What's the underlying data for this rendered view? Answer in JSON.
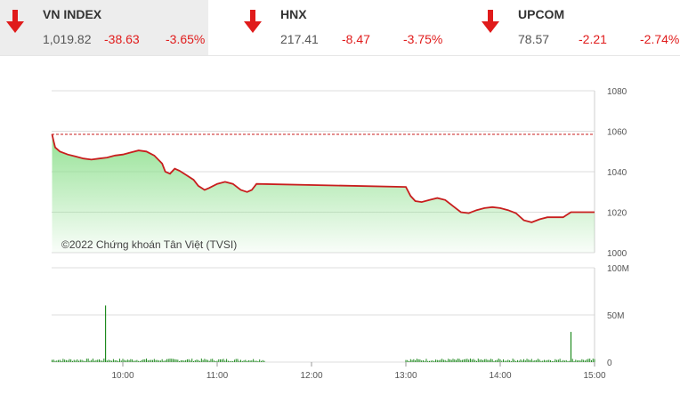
{
  "indices": [
    {
      "name": "VN INDEX",
      "price": "1,019.82",
      "change": "-38.63",
      "percent": "-3.65%",
      "direction_icon": "arrow-down-icon",
      "active": true
    },
    {
      "name": "HNX",
      "price": "217.41",
      "change": "-8.47",
      "percent": "-3.75%",
      "direction_icon": "arrow-down-icon",
      "active": false
    },
    {
      "name": "UPCOM",
      "price": "78.57",
      "change": "-2.21",
      "percent": "-2.74%",
      "direction_icon": "arrow-down-icon",
      "active": false
    }
  ],
  "colors": {
    "down": "#e01b1b",
    "line": "#c81e1e",
    "area": "#7fdc7f",
    "volume": "#1f8a1f",
    "grid": "#dddddd"
  },
  "watermark": "©2022 Chứng khoán Tân Việt (TVSI)",
  "chart_data": {
    "type": "line",
    "reference_value": 1058.45,
    "price_axis": {
      "ylim": [
        1000,
        1080
      ],
      "ticks": [
        "1080",
        "1060",
        "1040",
        "1020",
        "1000"
      ]
    },
    "volume_axis": {
      "ylim": [
        0,
        100
      ],
      "ticks": [
        "100M",
        "50M",
        "0"
      ]
    },
    "time_axis": {
      "ticks": [
        "10:00",
        "11:00",
        "12:00",
        "13:00",
        "14:00",
        "15:00"
      ]
    },
    "series": [
      {
        "values": [
          [
            "09:15",
            1058.5
          ],
          [
            "09:16",
            1055
          ],
          [
            "09:17",
            1052
          ],
          [
            "09:20",
            1050
          ],
          [
            "09:25",
            1048.5
          ],
          [
            "09:30",
            1047.5
          ],
          [
            "09:35",
            1046.5
          ],
          [
            "09:40",
            1046
          ],
          [
            "09:45",
            1046.5
          ],
          [
            "09:50",
            1047
          ],
          [
            "09:55",
            1048
          ],
          [
            "10:00",
            1048.5
          ],
          [
            "10:05",
            1049.5
          ],
          [
            "10:10",
            1050.5
          ],
          [
            "10:15",
            1050
          ],
          [
            "10:20",
            1048
          ],
          [
            "10:25",
            1044
          ],
          [
            "10:27",
            1040
          ],
          [
            "10:30",
            1039
          ],
          [
            "10:33",
            1041.5
          ],
          [
            "10:36",
            1040.5
          ],
          [
            "10:40",
            1038.5
          ],
          [
            "10:45",
            1036
          ],
          [
            "10:48",
            1033
          ],
          [
            "10:52",
            1031
          ],
          [
            "10:55",
            1032
          ],
          [
            "11:00",
            1034
          ],
          [
            "11:05",
            1035
          ],
          [
            "11:10",
            1034
          ],
          [
            "11:15",
            1031
          ],
          [
            "11:19",
            1030
          ],
          [
            "11:22",
            1031
          ],
          [
            "11:25",
            1034
          ],
          [
            "13:00",
            1032.5
          ],
          [
            "13:03",
            1028
          ],
          [
            "13:06",
            1025.5
          ],
          [
            "13:10",
            1025
          ],
          [
            "13:15",
            1026
          ],
          [
            "13:20",
            1027
          ],
          [
            "13:25",
            1026
          ],
          [
            "13:30",
            1023
          ],
          [
            "13:35",
            1020
          ],
          [
            "13:40",
            1019.5
          ],
          [
            "13:45",
            1021
          ],
          [
            "13:50",
            1022
          ],
          [
            "13:55",
            1022.5
          ],
          [
            "14:00",
            1022
          ],
          [
            "14:05",
            1021
          ],
          [
            "14:10",
            1019.5
          ],
          [
            "14:15",
            1016
          ],
          [
            "14:20",
            1015
          ],
          [
            "14:25",
            1016.5
          ],
          [
            "14:30",
            1017.5
          ],
          [
            "14:40",
            1017.5
          ],
          [
            "14:45",
            1020
          ],
          [
            "15:00",
            1020
          ]
        ]
      }
    ],
    "volume_spikes": [
      [
        "09:49",
        60
      ],
      [
        "14:45",
        32
      ]
    ]
  }
}
